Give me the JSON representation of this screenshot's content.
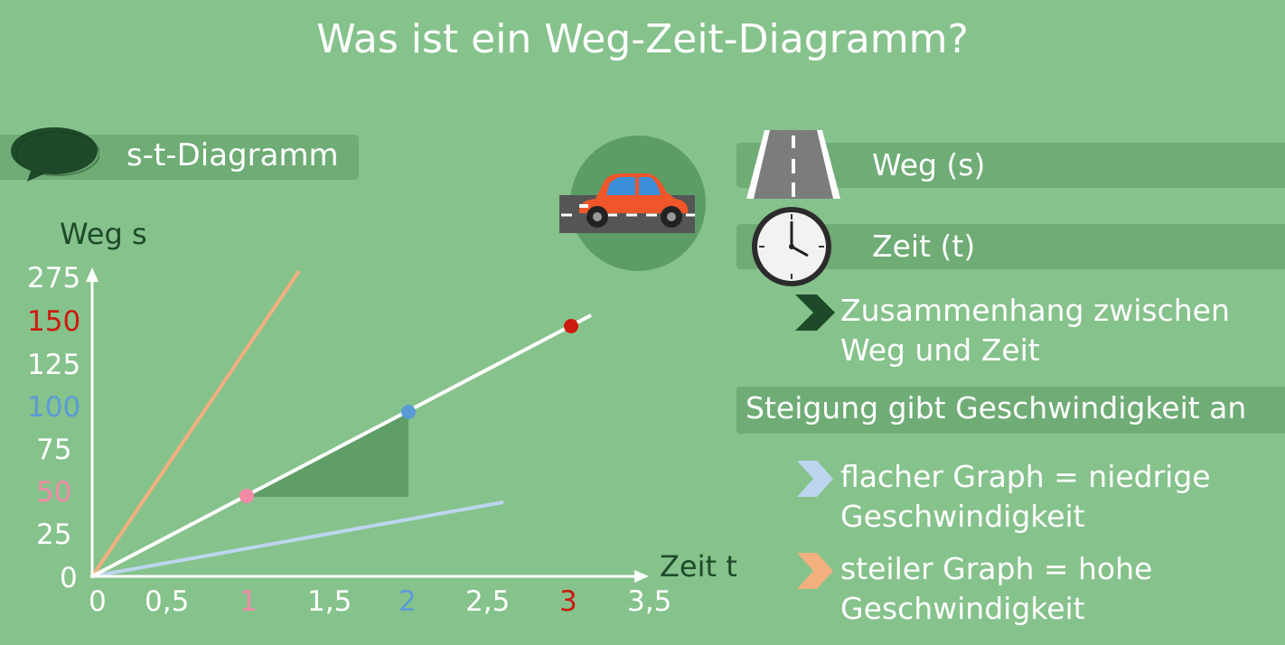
{
  "title": "Was ist ein Weg-Zeit-Diagramm?",
  "badge": "s-t-Diagramm",
  "legend": {
    "weg": "Weg (s)",
    "zeit": "Zeit (t)"
  },
  "notes": {
    "zusammenhang_line1": "Zusammenhang zwischen",
    "zusammenhang_line2": "Weg und Zeit",
    "steigung": "Steigung gibt Geschwindigkeit an",
    "flach_line1": "flacher Graph = niedrige",
    "flach_line2": "Geschwindigkeit",
    "steil_line1": "steiler Graph = hohe",
    "steil_line2": "Geschwindigkeit"
  },
  "colors": {
    "background": "#86c28c",
    "bar": "#6fac76",
    "dark_green": "#1e4a2a",
    "red": "#cc1a0f",
    "blue": "#5b9bd8",
    "pink": "#f58aa8",
    "orange_line": "#f2b07e",
    "light_blue_line": "#bcd6ee"
  },
  "chart_data": {
    "type": "line",
    "xlabel": "Zeit t",
    "ylabel": "Weg s",
    "x_ticks": [
      "0",
      "0,5",
      "1",
      "1,5",
      "2",
      "2,5",
      "3",
      "3,5"
    ],
    "y_ticks": [
      "0",
      "25",
      "50",
      "75",
      "100",
      "125",
      "150",
      "275"
    ],
    "series": [
      {
        "name": "",
        "color": "orange",
        "x": [
          0,
          1.3
        ],
        "y": [
          0,
          180
        ]
      },
      {
        "name": "",
        "color": "white",
        "x": [
          0,
          3.2
        ],
        "y": [
          0,
          155
        ]
      },
      {
        "name": "",
        "color": "lightblue",
        "x": [
          0,
          2.6
        ],
        "y": [
          0,
          44
        ]
      }
    ],
    "points": [
      {
        "x": 1,
        "y": 50,
        "color": "pink"
      },
      {
        "x": 2,
        "y": 100,
        "color": "blue"
      },
      {
        "x": 3,
        "y": 150,
        "color": "red"
      }
    ]
  }
}
